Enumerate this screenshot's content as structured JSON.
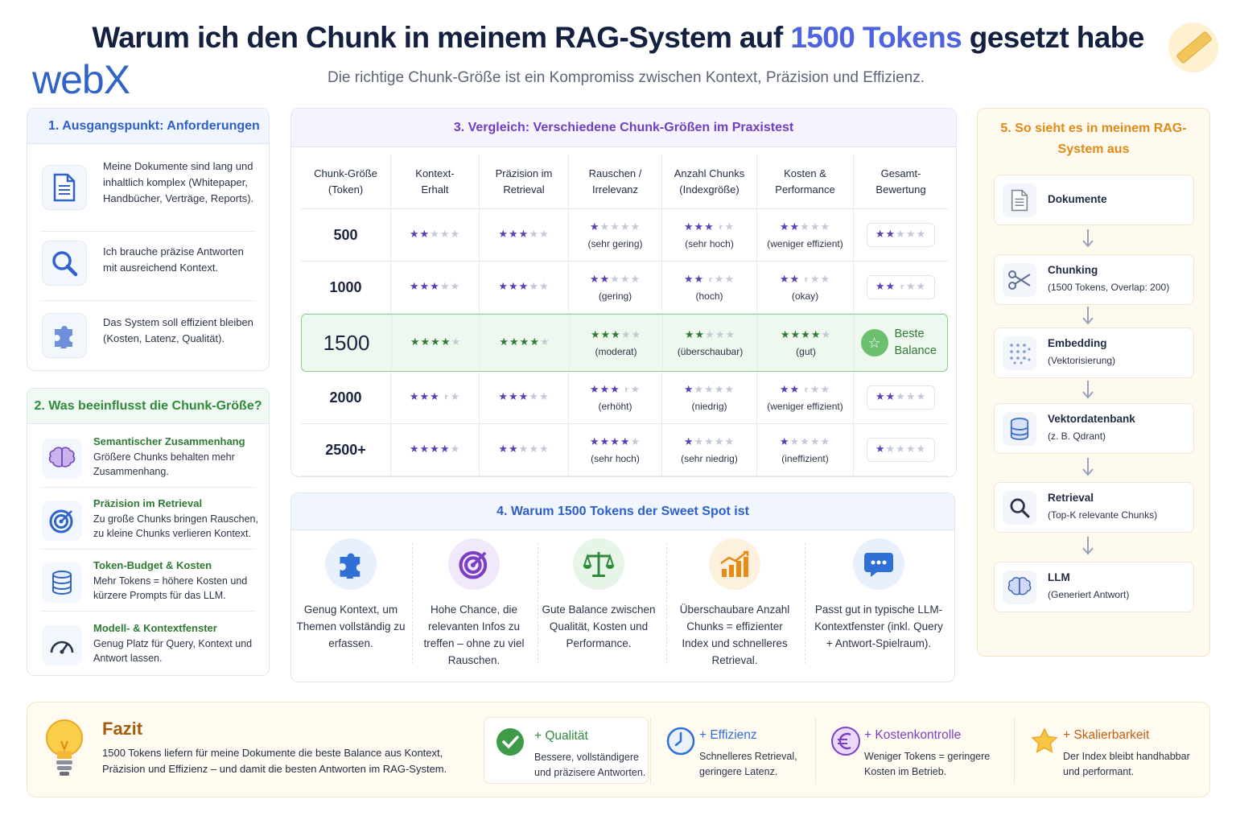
{
  "header": {
    "title_pre": "Warum ich den Chunk in meinem RAG-System auf ",
    "title_highlight": "1500 Tokens",
    "title_post": " gesetzt habe",
    "subtitle": "Die richtige Chunk-Größe ist ein Kompromiss zwischen Kontext, Präzision und Effizienz.",
    "logo": "webX"
  },
  "requirements": {
    "title": "1. Ausgangspunkt: Anforderungen",
    "items": [
      {
        "icon": "document-icon",
        "text": "Meine Dokumente sind lang und inhaltlich komplex (Whitepaper, Handbücher, Verträge, Reports)."
      },
      {
        "icon": "search-icon",
        "text": "Ich brauche präzise Antworten mit ausreichend Kontext."
      },
      {
        "icon": "puzzle-icon",
        "text": "Das System soll effizient bleiben (Kosten, Latenz, Qualität)."
      }
    ]
  },
  "influences": {
    "title": "2. Was beeinflusst die Chunk-Größe?",
    "items": [
      {
        "icon": "brain-icon",
        "title": "Semantischer Zusammenhang",
        "text": "Größere Chunks behalten mehr Zusammenhang."
      },
      {
        "icon": "target-icon",
        "title": "Präzision im Retrieval",
        "text": "Zu große Chunks bringen Rauschen, zu kleine Chunks verlieren Kontext."
      },
      {
        "icon": "database-icon",
        "title": "Token-Budget & Kosten",
        "text": "Mehr Tokens = höhere Kosten und kürzere Prompts für das LLM."
      },
      {
        "icon": "gauge-icon",
        "title": "Modell- & Kontextfenster",
        "text": "Genug Platz für Query, Kontext und Antwort lassen."
      }
    ]
  },
  "comparison": {
    "title": "3. Vergleich: Verschiedene Chunk-Größen im Praxistest",
    "headers": [
      [
        "Chunk-Größe",
        "(Token)"
      ],
      [
        "Kontext-",
        "Erhalt"
      ],
      [
        "Präzision im",
        "Retrieval"
      ],
      [
        "Rauschen /",
        "Irrelevanz"
      ],
      [
        "Anzahl Chunks",
        "(Indexgröße)"
      ],
      [
        "Kosten &",
        "Performance"
      ],
      [
        "Gesamt-",
        "Bewertung"
      ]
    ],
    "rows": [
      {
        "size": "500",
        "kontext": 2,
        "praezision": 3,
        "rauschen": 1,
        "rauschen_label": "(sehr gering)",
        "anzahl": 3.5,
        "anzahl_label": "(sehr hoch)",
        "kosten": 2,
        "kosten_label": "(weniger effizient)",
        "gesamt": 2,
        "highlight": false
      },
      {
        "size": "1000",
        "kontext": 3,
        "praezision": 3,
        "rauschen": 2,
        "rauschen_label": "(gering)",
        "anzahl": 2.5,
        "anzahl_label": "(hoch)",
        "kosten": 2.5,
        "kosten_label": "(okay)",
        "gesamt": 2.5,
        "highlight": false
      },
      {
        "size": "1500",
        "kontext": 4,
        "praezision": 4,
        "rauschen": 3,
        "rauschen_label": "(moderat)",
        "anzahl": 2,
        "anzahl_label": "(überschaubar)",
        "kosten": 4,
        "kosten_label": "(gut)",
        "gesamt_label": "Beste Balance",
        "highlight": true
      },
      {
        "size": "2000",
        "kontext": 3.5,
        "praezision": 3,
        "rauschen": 3.5,
        "rauschen_label": "(erhöht)",
        "anzahl": 1,
        "anzahl_label": "(niedrig)",
        "kosten": 2.5,
        "kosten_label": "(weniger effizient)",
        "gesamt": 2,
        "highlight": false
      },
      {
        "size": "2500+",
        "kontext": 4,
        "praezision": 2,
        "rauschen": 4,
        "rauschen_label": "(sehr hoch)",
        "anzahl": 1,
        "anzahl_label": "(sehr niedrig)",
        "kosten": 1,
        "kosten_label": "(ineffizient)",
        "gesamt": 1,
        "highlight": false
      }
    ]
  },
  "sweetspot": {
    "title": "4. Warum 1500 Tokens der Sweet Spot ist",
    "items": [
      {
        "icon": "puzzle-icon",
        "color": "#2f6fd6",
        "bg": "#e8f0fd",
        "text": "Genug Kontext, um Themen vollständig zu erfassen."
      },
      {
        "icon": "target-icon",
        "color": "#7b3fc6",
        "bg": "#f1e9fb",
        "text": "Hohe Chance, die relevanten Infos zu treffen – ohne zu viel Rauschen."
      },
      {
        "icon": "scale-icon",
        "color": "#2f8a3b",
        "bg": "#e7f5e9",
        "text": "Gute Balance zwischen Qualität, Kosten und Performance."
      },
      {
        "icon": "chart-icon",
        "color": "#e88a14",
        "bg": "#fdf1dd",
        "text": "Überschaubare Anzahl Chunks = effizienter Index und schnelleres Retrieval."
      },
      {
        "icon": "chat-icon",
        "color": "#2f6fd6",
        "bg": "#e8f0fd",
        "text": "Passt gut in typische LLM-Kontextfenster (inkl. Query + Antwort-Spielraum)."
      }
    ]
  },
  "pipeline": {
    "title": "5. So sieht es in meinem RAG-System aus",
    "steps": [
      {
        "icon": "document-icon",
        "title": "Dokumente",
        "detail": ""
      },
      {
        "icon": "scissors-icon",
        "title": "Chunking",
        "detail": "(1500 Tokens, Overlap: 200)"
      },
      {
        "icon": "grid-dots-icon",
        "title": "Embedding",
        "detail": "(Vektorisierung)"
      },
      {
        "icon": "database-icon",
        "title": "Vektordatenbank",
        "detail": "(z. B. Qdrant)"
      },
      {
        "icon": "search-icon",
        "title": "Retrieval",
        "detail": "(Top-K relevante Chunks)"
      },
      {
        "icon": "brain-icon",
        "title": "LLM",
        "detail": "(Generiert Antwort)"
      }
    ]
  },
  "fazit": {
    "title": "Fazit",
    "text": "1500 Tokens liefern für meine Dokumente die beste Balance aus Kontext, Präzision und Effizienz – und damit die besten Antworten im RAG-System.",
    "benefits": [
      {
        "icon": "check-icon",
        "title": "+ Qualität",
        "color": "#2f8a3b",
        "text": "Bessere, vollständigere und präzisere Antworten."
      },
      {
        "icon": "clock-icon",
        "title": "+ Effizienz",
        "color": "#2f6fd6",
        "text": "Schnelleres Retrieval, geringere Latenz."
      },
      {
        "icon": "euro-icon",
        "title": "+ Kostenkontrolle",
        "color": "#7b3fc6",
        "text": "Weniger Tokens = geringere Kosten im Betrieb."
      },
      {
        "icon": "star-icon",
        "title": "+ Skalierbarkeit",
        "color": "#c25f12",
        "text": "Der Index bleibt handhabbar und performant."
      }
    ]
  }
}
